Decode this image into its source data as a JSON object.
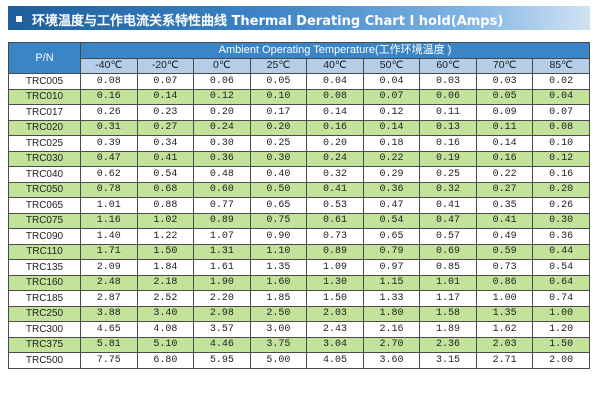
{
  "title": "环境温度与工作电流关系特性曲线 Thermal Derating Chart I hold(Amps)",
  "header": {
    "pn_label": "P/N",
    "ambient_label": "Ambient Operating Temperature(工作环境温度 )",
    "temperatures": [
      "-40℃",
      "-20℃",
      "0℃",
      "25℃",
      "40℃",
      "50℃",
      "60℃",
      "70℃",
      "85℃"
    ]
  },
  "colors": {
    "banner": "#3e84c7",
    "header_bg": "#3a85c6",
    "subheader_bg": "#b6cde8",
    "stripe_green": "#c3e29a"
  },
  "rows": [
    {
      "part": "TRC005",
      "values": [
        "0.08",
        "0.07",
        "0.06",
        "0.05",
        "0.04",
        "0.04",
        "0.03",
        "0.03",
        "0.02"
      ]
    },
    {
      "part": "TRC010",
      "values": [
        "0.16",
        "0.14",
        "0.12",
        "0.10",
        "0.08",
        "0.07",
        "0.06",
        "0.05",
        "0.04"
      ]
    },
    {
      "part": "TRC017",
      "values": [
        "0.26",
        "0.23",
        "0.20",
        "0.17",
        "0.14",
        "0.12",
        "0.11",
        "0.09",
        "0.07"
      ]
    },
    {
      "part": "TRC020",
      "values": [
        "0.31",
        "0.27",
        "0.24",
        "0.20",
        "0.16",
        "0.14",
        "0.13",
        "0.11",
        "0.08"
      ]
    },
    {
      "part": "TRC025",
      "values": [
        "0.39",
        "0.34",
        "0.30",
        "0.25",
        "0.20",
        "0.18",
        "0.16",
        "0.14",
        "0.10"
      ]
    },
    {
      "part": "TRC030",
      "values": [
        "0.47",
        "0.41",
        "0.36",
        "0.30",
        "0.24",
        "0.22",
        "0.19",
        "0.16",
        "0.12"
      ]
    },
    {
      "part": "TRC040",
      "values": [
        "0.62",
        "0.54",
        "0.48",
        "0.40",
        "0.32",
        "0.29",
        "0.25",
        "0.22",
        "0.16"
      ]
    },
    {
      "part": "TRC050",
      "values": [
        "0.78",
        "0.68",
        "0.60",
        "0.50",
        "0.41",
        "0.36",
        "0.32",
        "0.27",
        "0.20"
      ]
    },
    {
      "part": "TRC065",
      "values": [
        "1.01",
        "0.88",
        "0.77",
        "0.65",
        "0.53",
        "0.47",
        "0.41",
        "0.35",
        "0.26"
      ]
    },
    {
      "part": "TRC075",
      "values": [
        "1.16",
        "1.02",
        "0.89",
        "0.75",
        "0.61",
        "0.54",
        "0.47",
        "0.41",
        "0.30"
      ]
    },
    {
      "part": "TRC090",
      "values": [
        "1.40",
        "1.22",
        "1.07",
        "0.90",
        "0.73",
        "0.65",
        "0.57",
        "0.49",
        "0.36"
      ]
    },
    {
      "part": "TRC110",
      "values": [
        "1.71",
        "1.50",
        "1.31",
        "1.10",
        "0.89",
        "0.79",
        "0.69",
        "0.59",
        "0.44"
      ]
    },
    {
      "part": "TRC135",
      "values": [
        "2.09",
        "1.84",
        "1.61",
        "1.35",
        "1.09",
        "0.97",
        "0.85",
        "0.73",
        "0.54"
      ]
    },
    {
      "part": "TRC160",
      "values": [
        "2.48",
        "2.18",
        "1.90",
        "1.60",
        "1.30",
        "1.15",
        "1.01",
        "0.86",
        "0.64"
      ]
    },
    {
      "part": "TRC185",
      "values": [
        "2.87",
        "2.52",
        "2.20",
        "1.85",
        "1.50",
        "1.33",
        "1.17",
        "1.00",
        "0.74"
      ]
    },
    {
      "part": "TRC250",
      "values": [
        "3.88",
        "3.40",
        "2.98",
        "2.50",
        "2.03",
        "1.80",
        "1.58",
        "1.35",
        "1.00"
      ]
    },
    {
      "part": "TRC300",
      "values": [
        "4.65",
        "4.08",
        "3.57",
        "3.00",
        "2.43",
        "2.16",
        "1.89",
        "1.62",
        "1.20"
      ]
    },
    {
      "part": "TRC375",
      "values": [
        "5.81",
        "5.10",
        "4.46",
        "3.75",
        "3.04",
        "2.70",
        "2.36",
        "2.03",
        "1.50"
      ]
    },
    {
      "part": "TRC500",
      "values": [
        "7.75",
        "6.80",
        "5.95",
        "5.00",
        "4.05",
        "3.60",
        "3.15",
        "2.71",
        "2.00"
      ]
    }
  ]
}
